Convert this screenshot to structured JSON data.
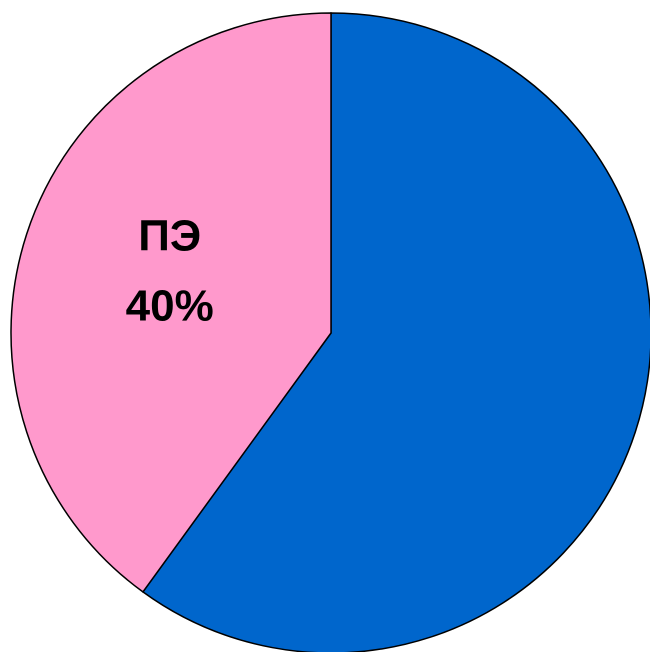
{
  "chart_data": {
    "type": "pie",
    "slices": [
      {
        "label": "",
        "percent_label": "",
        "value": 60,
        "color": "#0066cc"
      },
      {
        "label": "ПЭ",
        "percent_label": "40%",
        "value": 40,
        "color": "#ff99cc"
      }
    ]
  }
}
